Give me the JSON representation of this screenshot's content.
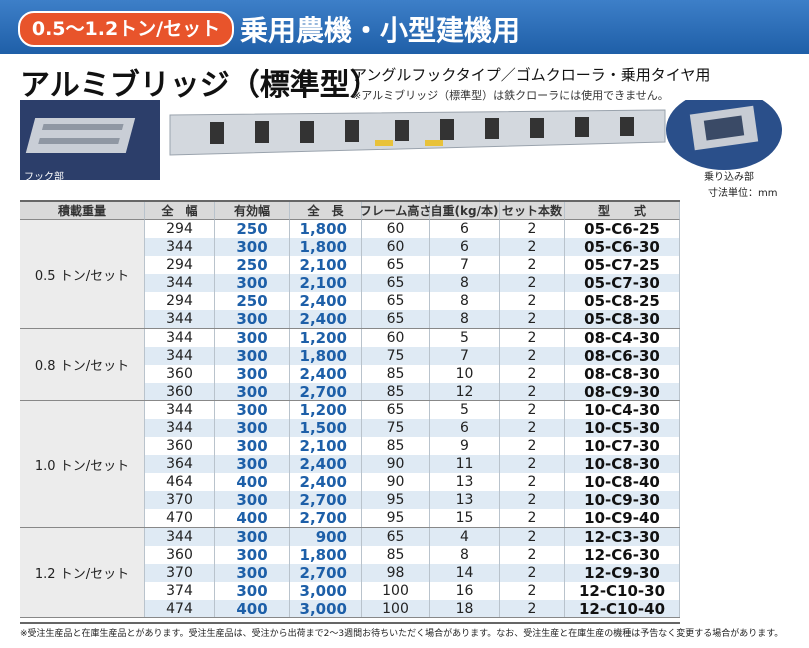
{
  "header": {
    "badge": "0.5〜1.2トン/セット",
    "title": "乗用農機・小型建機用"
  },
  "product": {
    "title": "アルミブリッジ（標準型）",
    "subtitle": "アングルフックタイプ／ゴムクローラ・乗用タイヤ用",
    "note": "※アルミブリッジ（標準型）は鉄クローラには使用できません。"
  },
  "photos": {
    "hook_label": "フック部",
    "entry_label": "乗り込み部",
    "unit": "寸法単位：mm"
  },
  "table": {
    "columns": [
      "積載重量",
      "全　幅",
      "有効幅",
      "全　長",
      "フレーム高さ",
      "自重(kg/本)",
      "セット本数",
      "型　　式"
    ],
    "groups": [
      {
        "label": "0.5 トン/セット",
        "rows": [
          [
            "294",
            "250",
            "1,800",
            "60",
            "6",
            "2",
            "05-C6-25"
          ],
          [
            "344",
            "300",
            "1,800",
            "60",
            "6",
            "2",
            "05-C6-30"
          ],
          [
            "294",
            "250",
            "2,100",
            "65",
            "7",
            "2",
            "05-C7-25"
          ],
          [
            "344",
            "300",
            "2,100",
            "65",
            "8",
            "2",
            "05-C7-30"
          ],
          [
            "294",
            "250",
            "2,400",
            "65",
            "8",
            "2",
            "05-C8-25"
          ],
          [
            "344",
            "300",
            "2,400",
            "65",
            "8",
            "2",
            "05-C8-30"
          ]
        ]
      },
      {
        "label": "0.8 トン/セット",
        "rows": [
          [
            "344",
            "300",
            "1,200",
            "60",
            "5",
            "2",
            "08-C4-30"
          ],
          [
            "344",
            "300",
            "1,800",
            "75",
            "7",
            "2",
            "08-C6-30"
          ],
          [
            "360",
            "300",
            "2,400",
            "85",
            "10",
            "2",
            "08-C8-30"
          ],
          [
            "360",
            "300",
            "2,700",
            "85",
            "12",
            "2",
            "08-C9-30"
          ]
        ]
      },
      {
        "label": "1.0 トン/セット",
        "rows": [
          [
            "344",
            "300",
            "1,200",
            "65",
            "5",
            "2",
            "10-C4-30"
          ],
          [
            "344",
            "300",
            "1,500",
            "75",
            "6",
            "2",
            "10-C5-30"
          ],
          [
            "360",
            "300",
            "2,100",
            "85",
            "9",
            "2",
            "10-C7-30"
          ],
          [
            "364",
            "300",
            "2,400",
            "90",
            "11",
            "2",
            "10-C8-30"
          ],
          [
            "464",
            "400",
            "2,400",
            "90",
            "13",
            "2",
            "10-C8-40"
          ],
          [
            "370",
            "300",
            "2,700",
            "95",
            "13",
            "2",
            "10-C9-30"
          ],
          [
            "470",
            "400",
            "2,700",
            "95",
            "15",
            "2",
            "10-C9-40"
          ]
        ]
      },
      {
        "label": "1.2 トン/セット",
        "rows": [
          [
            "344",
            "300",
            "900",
            "65",
            "4",
            "2",
            "12-C3-30"
          ],
          [
            "360",
            "300",
            "1,800",
            "85",
            "8",
            "2",
            "12-C6-30"
          ],
          [
            "370",
            "300",
            "2,700",
            "98",
            "14",
            "2",
            "12-C9-30"
          ],
          [
            "374",
            "300",
            "3,000",
            "100",
            "16",
            "2",
            "12-C10-30"
          ],
          [
            "474",
            "400",
            "3,000",
            "100",
            "18",
            "2",
            "12-C10-40"
          ]
        ]
      }
    ]
  },
  "footer": "※受注生産品と在庫生産品とがあります。受注生産品は、受注から出荷まで2〜3週間お待ちいただく場合があります。なお、受注生産と在庫生産の機種は予告なく変更する場合があります。"
}
